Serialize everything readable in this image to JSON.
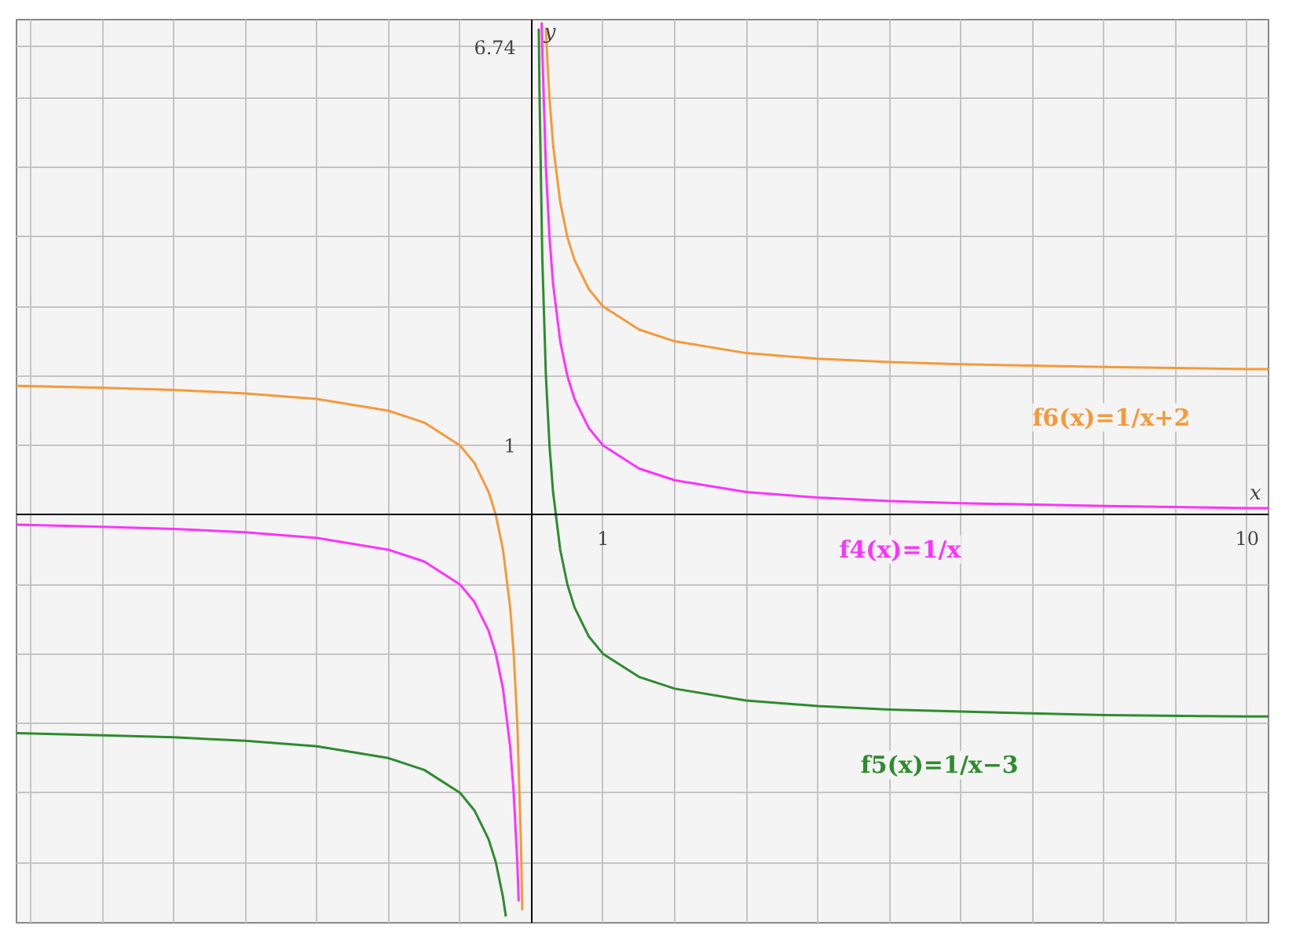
{
  "chart_data": {
    "type": "line",
    "xlabel": "x",
    "ylabel": "y",
    "xlim": [
      -7.2,
      10.3
    ],
    "ylim": [
      -5.87,
      7.13
    ],
    "xticks": [
      {
        "value": -7,
        "label": null
      },
      {
        "value": -6,
        "label": null
      },
      {
        "value": -5,
        "label": null
      },
      {
        "value": -4,
        "label": null
      },
      {
        "value": -3,
        "label": null
      },
      {
        "value": -2,
        "label": null
      },
      {
        "value": -1,
        "label": null
      },
      {
        "value": 0,
        "label": null
      },
      1,
      {
        "value": 2,
        "label": null
      },
      {
        "value": 3,
        "label": null
      },
      {
        "value": 4,
        "label": null
      },
      {
        "value": 5,
        "label": null
      },
      {
        "value": 6,
        "label": null
      },
      {
        "value": 7,
        "label": null
      },
      {
        "value": 8,
        "label": null
      },
      {
        "value": 9,
        "label": null
      },
      10
    ],
    "yticks": [
      {
        "value": -5,
        "label": null
      },
      {
        "value": -4,
        "label": null
      },
      {
        "value": -3,
        "label": null
      },
      {
        "value": -2,
        "label": null
      },
      {
        "value": -1,
        "label": null
      },
      {
        "value": 0,
        "label": null
      },
      1,
      {
        "value": 2,
        "label": null
      },
      {
        "value": 3,
        "label": null
      },
      {
        "value": 4,
        "label": null
      },
      {
        "value": 5,
        "label": null
      },
      {
        "value": 6,
        "label": null
      },
      6.74
    ],
    "grid": true,
    "marker": "none",
    "line_style": "solid",
    "series": [
      {
        "name": "f6(x)=1/x+2",
        "color": "#f59a3a",
        "x": [
          -7.2,
          -6,
          -5,
          -4,
          -3,
          -2,
          -1.5,
          -1,
          -0.8,
          -0.6,
          -0.5,
          -0.4,
          -0.3,
          -0.25,
          -0.2,
          -0.15,
          -0.13,
          0,
          0.2,
          0.22,
          0.25,
          0.3,
          0.4,
          0.5,
          0.6,
          0.8,
          1,
          1.5,
          2,
          3,
          4,
          5,
          6,
          8,
          10,
          10.3
        ],
        "values": [
          1.86,
          1.83,
          1.8,
          1.75,
          1.67,
          1.5,
          1.33,
          1,
          0.75,
          0.33,
          0,
          -0.5,
          -1.33,
          -2,
          -3,
          -4.67,
          -5.69,
          null,
          7,
          6.55,
          6,
          5.33,
          4.5,
          4,
          3.67,
          3.25,
          3,
          2.67,
          2.5,
          2.33,
          2.25,
          2.2,
          2.17,
          2.13,
          2.1,
          2.1
        ]
      },
      {
        "name": "f4(x)=1/x",
        "color": "#ff33ff",
        "x": [
          -7.2,
          -6,
          -5,
          -4,
          -3,
          -2,
          -1.5,
          -1,
          -0.8,
          -0.6,
          -0.5,
          -0.4,
          -0.3,
          -0.25,
          -0.2,
          -0.18,
          0,
          0.141,
          0.15,
          0.2,
          0.25,
          0.3,
          0.4,
          0.5,
          0.6,
          0.8,
          1,
          1.5,
          2,
          3,
          4,
          5,
          6,
          8,
          10,
          10.3
        ],
        "values": [
          -0.14,
          -0.17,
          -0.2,
          -0.25,
          -0.33,
          -0.5,
          -0.67,
          -1,
          -1.25,
          -1.67,
          -2,
          -2.5,
          -3.33,
          -4,
          -5,
          -5.56,
          null,
          7.09,
          6.67,
          5,
          4,
          3.33,
          2.5,
          2,
          1.67,
          1.25,
          1,
          0.67,
          0.5,
          0.33,
          0.25,
          0.2,
          0.17,
          0.13,
          0.1,
          0.1
        ]
      },
      {
        "name": "f5(x)=1/x−3",
        "color": "#2e8b2e",
        "x": [
          -7.2,
          -6,
          -5,
          -4,
          -3,
          -2,
          -1.5,
          -1,
          -0.8,
          -0.6,
          -0.5,
          -0.4,
          -0.36,
          0,
          0.1,
          0.11,
          0.15,
          0.2,
          0.25,
          0.3,
          0.4,
          0.5,
          0.6,
          0.8,
          1,
          1.5,
          2,
          3,
          4,
          5,
          6,
          8,
          10,
          10.3
        ],
        "values": [
          -3.14,
          -3.17,
          -3.2,
          -3.25,
          -3.33,
          -3.5,
          -3.67,
          -4,
          -4.25,
          -4.67,
          -5,
          -5.5,
          -5.78,
          null,
          7,
          6.09,
          3.67,
          2,
          1,
          0.33,
          -0.5,
          -1,
          -1.33,
          -1.75,
          -2,
          -2.33,
          -2.5,
          -2.67,
          -2.75,
          -2.8,
          -2.83,
          -2.88,
          -2.9,
          -2.9
        ]
      }
    ]
  }
}
